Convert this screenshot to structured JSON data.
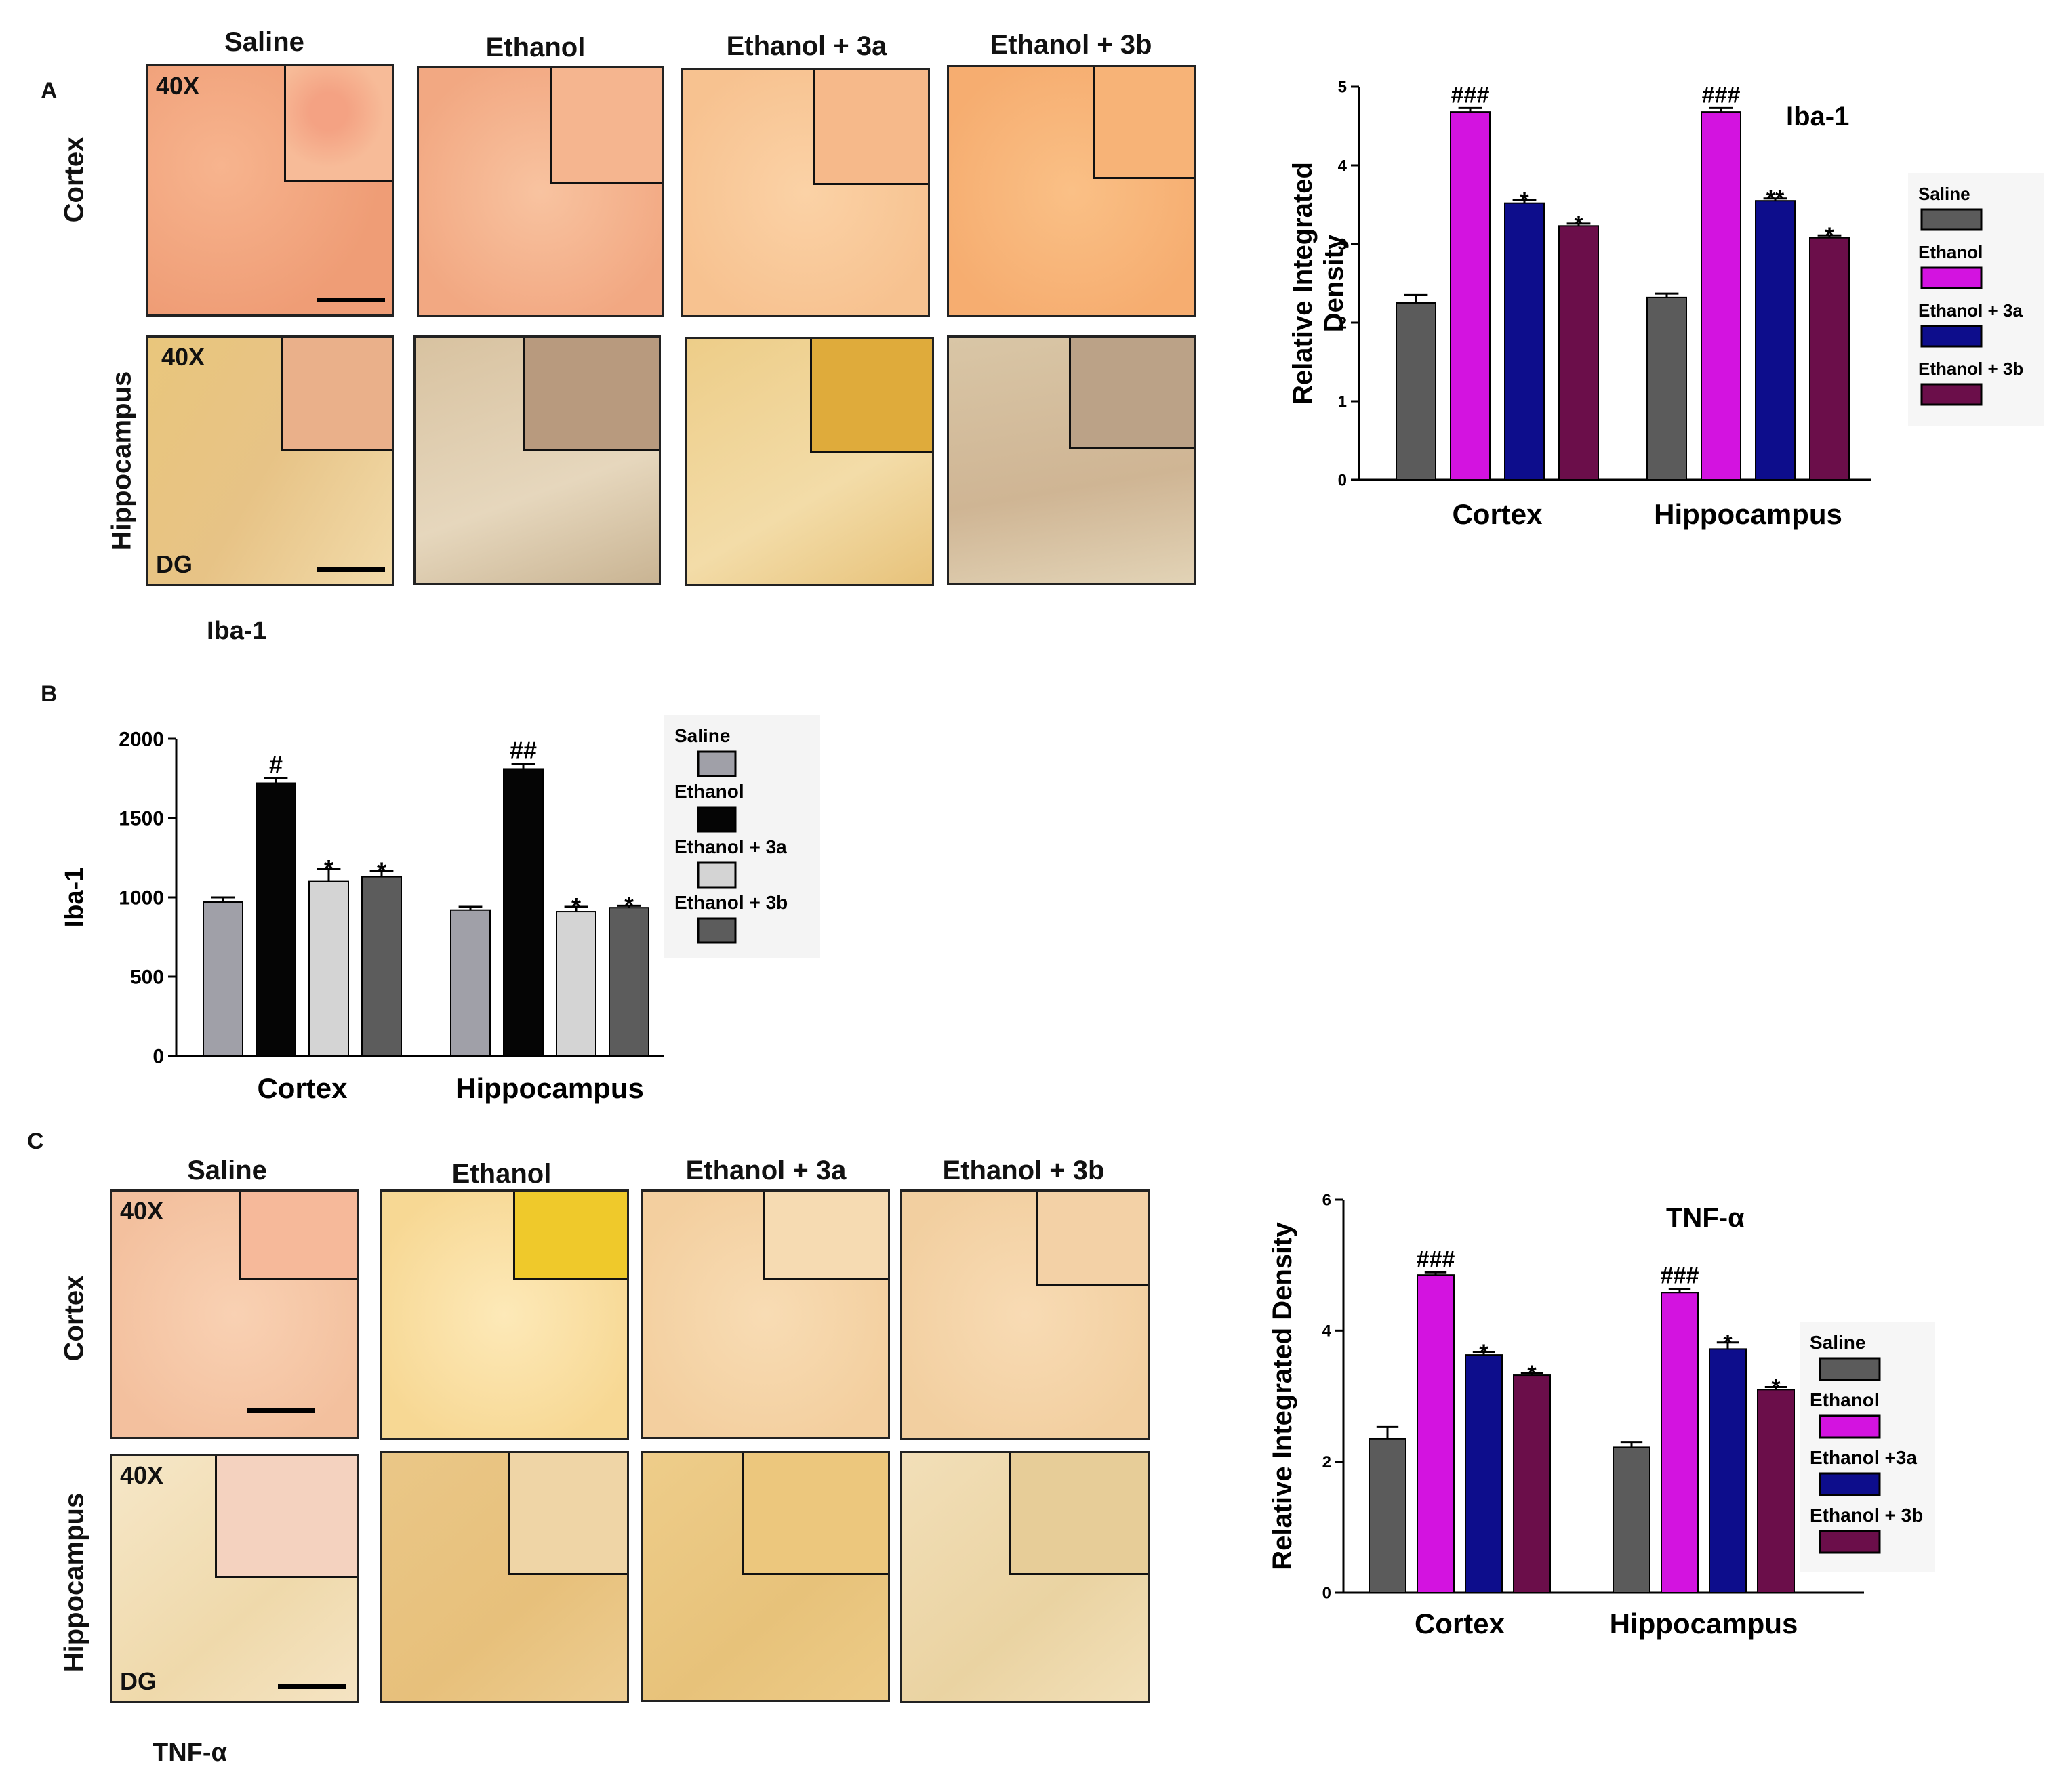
{
  "panels": {
    "A": {
      "letter": "A",
      "columns": [
        "Saline",
        "Ethanol",
        "Ethanol + 3a",
        "Ethanol + 3b"
      ],
      "rows": [
        "Cortex",
        "Hippocampus"
      ],
      "magnification": "40X",
      "region_label": "DG",
      "stain_caption": "Iba-1"
    },
    "B": {
      "letter": "B"
    },
    "C": {
      "letter": "C",
      "columns": [
        "Saline",
        "Ethanol",
        "Ethanol + 3a",
        "Ethanol + 3b"
      ],
      "rows": [
        "Cortex",
        "Hippocampus"
      ],
      "magnification": "40X",
      "region_label": "DG",
      "stain_caption": "TNF-α"
    }
  },
  "chart_data": [
    {
      "id": "A-chart",
      "type": "bar",
      "title": "Iba-1",
      "xlabel": "",
      "ylabel": "Relative Integrated\nDensity",
      "ylim": [
        0,
        5
      ],
      "yticks": [
        0,
        1,
        2,
        3,
        4,
        5
      ],
      "categories": [
        "Cortex",
        "Hippocampus"
      ],
      "legend_position": "right",
      "series": [
        {
          "name": "Saline",
          "color": "#5b5b5b",
          "values": [
            2.25,
            2.32
          ],
          "errors": [
            0.1,
            0.05
          ],
          "markers": [
            "",
            ""
          ]
        },
        {
          "name": "Ethanol",
          "color": "#d313e0",
          "values": [
            4.68,
            4.68
          ],
          "errors": [
            0.05,
            0.05
          ],
          "markers": [
            "###",
            "###"
          ]
        },
        {
          "name": "Ethanol +  3a",
          "color": "#0d0d8c",
          "values": [
            3.52,
            3.55
          ],
          "errors": [
            0.04,
            0.03
          ],
          "markers": [
            "*",
            "**"
          ]
        },
        {
          "name": "Ethanol + 3b",
          "color": "#6b0e4a",
          "values": [
            3.23,
            3.08
          ],
          "errors": [
            0.03,
            0.03
          ],
          "markers": [
            "*",
            "*"
          ]
        }
      ]
    },
    {
      "id": "B-chart",
      "type": "bar",
      "title": "",
      "xlabel": "",
      "ylabel": "Iba-1",
      "ylim": [
        0,
        2000
      ],
      "yticks": [
        0,
        500,
        1000,
        1500,
        2000
      ],
      "categories": [
        "Cortex",
        "Hippocampus"
      ],
      "legend_position": "right",
      "series": [
        {
          "name": "Saline",
          "color": "#a0a0a8",
          "values": [
            970,
            920
          ],
          "errors": [
            30,
            20
          ],
          "markers": [
            "",
            ""
          ]
        },
        {
          "name": "Ethanol",
          "color": "#050505",
          "values": [
            1720,
            1810
          ],
          "errors": [
            30,
            30
          ],
          "markers": [
            "#",
            "##"
          ]
        },
        {
          "name": "Ethanol +  3a",
          "color": "#d4d4d4",
          "values": [
            1100,
            910
          ],
          "errors": [
            80,
            30
          ],
          "markers": [
            "*",
            "*"
          ]
        },
        {
          "name": "Ethanol +  3b",
          "color": "#5c5c5c",
          "values": [
            1130,
            935
          ],
          "errors": [
            35,
            12
          ],
          "markers": [
            "*",
            "*"
          ]
        }
      ]
    },
    {
      "id": "C-chart",
      "type": "bar",
      "title": "TNF-α",
      "xlabel": "",
      "ylabel": "Relative Integrated Density",
      "ylim": [
        0,
        6
      ],
      "yticks": [
        0,
        2,
        4,
        6
      ],
      "categories": [
        "Cortex",
        "Hippocampus"
      ],
      "legend_position": "right",
      "series": [
        {
          "name": "Saline",
          "color": "#5b5b5b",
          "values": [
            2.35,
            2.22
          ],
          "errors": [
            0.18,
            0.08
          ],
          "markers": [
            "",
            ""
          ]
        },
        {
          "name": "Ethanol",
          "color": "#d313e0",
          "values": [
            4.85,
            4.58
          ],
          "errors": [
            0.04,
            0.06
          ],
          "markers": [
            "###",
            "###"
          ]
        },
        {
          "name": "Ethanol +3a",
          "color": "#0d0d8c",
          "values": [
            3.63,
            3.72
          ],
          "errors": [
            0.04,
            0.1
          ],
          "markers": [
            "*",
            "*"
          ]
        },
        {
          "name": "Ethanol + 3b",
          "color": "#6b0e4a",
          "values": [
            3.32,
            3.1
          ],
          "errors": [
            0.03,
            0.04
          ],
          "markers": [
            "*",
            "*"
          ]
        }
      ]
    }
  ],
  "colors": {
    "cortex_A": "#f2a57e",
    "cortex_A_alt": "#f7c28f",
    "hippo_A": "#e7c27a",
    "cortex_C": "#f6cfa0",
    "hippo_C": "#eecb88"
  }
}
